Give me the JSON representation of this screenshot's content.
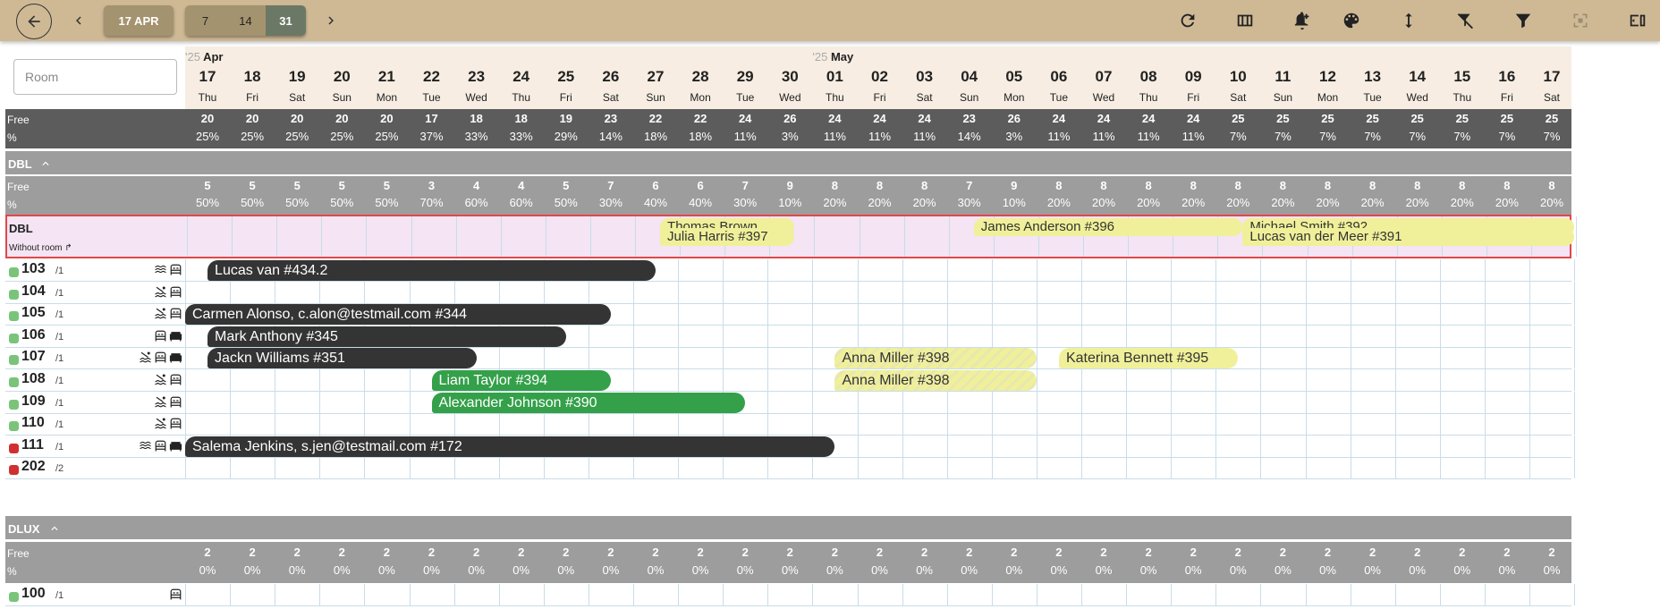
{
  "toolbar": {
    "date_label": "17 APR",
    "ranges": [
      {
        "label": "7",
        "active": false
      },
      {
        "label": "14",
        "active": false
      },
      {
        "label": "31",
        "active": true
      }
    ],
    "icons": [
      "refresh-icon",
      "columns-icon",
      "bell-plus-icon",
      "palette-icon",
      "vertical-arrows-icon",
      "filter-off-icon",
      "filter-icon",
      "fullscreen-icon",
      "sidebar-toggle-icon"
    ]
  },
  "search": {
    "placeholder": "Room"
  },
  "months": [
    {
      "year": "'25",
      "name": "Apr",
      "start_day_index": 0
    },
    {
      "year": "'25",
      "name": "May",
      "start_day_index": 14
    }
  ],
  "days": [
    {
      "n": "17",
      "w": "Thu"
    },
    {
      "n": "18",
      "w": "Fri"
    },
    {
      "n": "19",
      "w": "Sat"
    },
    {
      "n": "20",
      "w": "Sun"
    },
    {
      "n": "21",
      "w": "Mon"
    },
    {
      "n": "22",
      "w": "Tue"
    },
    {
      "n": "23",
      "w": "Wed"
    },
    {
      "n": "24",
      "w": "Thu"
    },
    {
      "n": "25",
      "w": "Fri"
    },
    {
      "n": "26",
      "w": "Sat"
    },
    {
      "n": "27",
      "w": "Sun"
    },
    {
      "n": "28",
      "w": "Mon"
    },
    {
      "n": "29",
      "w": "Tue"
    },
    {
      "n": "30",
      "w": "Wed"
    },
    {
      "n": "01",
      "w": "Thu"
    },
    {
      "n": "02",
      "w": "Fri"
    },
    {
      "n": "03",
      "w": "Sat"
    },
    {
      "n": "04",
      "w": "Sun"
    },
    {
      "n": "05",
      "w": "Mon"
    },
    {
      "n": "06",
      "w": "Tue"
    },
    {
      "n": "07",
      "w": "Wed"
    },
    {
      "n": "08",
      "w": "Thu"
    },
    {
      "n": "09",
      "w": "Fri"
    },
    {
      "n": "10",
      "w": "Sat"
    },
    {
      "n": "11",
      "w": "Sun"
    },
    {
      "n": "12",
      "w": "Mon"
    },
    {
      "n": "13",
      "w": "Tue"
    },
    {
      "n": "14",
      "w": "Wed"
    },
    {
      "n": "15",
      "w": "Thu"
    },
    {
      "n": "16",
      "w": "Fri"
    },
    {
      "n": "17",
      "w": "Sat"
    }
  ],
  "stat_labels": {
    "free": "Free",
    "pct": "%"
  },
  "total_stats": {
    "free": [
      "20",
      "20",
      "20",
      "20",
      "20",
      "17",
      "18",
      "18",
      "19",
      "23",
      "22",
      "22",
      "24",
      "26",
      "24",
      "24",
      "24",
      "23",
      "26",
      "24",
      "24",
      "24",
      "24",
      "25",
      "25",
      "25",
      "25",
      "25",
      "25",
      "25",
      "25"
    ],
    "pct": [
      "25%",
      "25%",
      "25%",
      "25%",
      "25%",
      "37%",
      "33%",
      "33%",
      "29%",
      "14%",
      "18%",
      "18%",
      "11%",
      "3%",
      "11%",
      "11%",
      "11%",
      "14%",
      "3%",
      "11%",
      "11%",
      "11%",
      "11%",
      "7%",
      "7%",
      "7%",
      "7%",
      "7%",
      "7%",
      "7%",
      "7%"
    ]
  },
  "sections": [
    {
      "name": "DBL",
      "free": [
        "5",
        "5",
        "5",
        "5",
        "5",
        "3",
        "4",
        "4",
        "5",
        "7",
        "6",
        "6",
        "7",
        "9",
        "8",
        "8",
        "8",
        "7",
        "9",
        "8",
        "8",
        "8",
        "8",
        "8",
        "8",
        "8",
        "8",
        "8",
        "8",
        "8",
        "8"
      ],
      "pct": [
        "50%",
        "50%",
        "50%",
        "50%",
        "50%",
        "70%",
        "60%",
        "60%",
        "50%",
        "30%",
        "40%",
        "40%",
        "30%",
        "10%",
        "20%",
        "20%",
        "20%",
        "30%",
        "10%",
        "20%",
        "20%",
        "20%",
        "20%",
        "20%",
        "20%",
        "20%",
        "20%",
        "20%",
        "20%",
        "20%",
        "20%"
      ]
    },
    {
      "name": "DLUX",
      "free": [
        "2",
        "2",
        "2",
        "2",
        "2",
        "2",
        "2",
        "2",
        "2",
        "2",
        "2",
        "2",
        "2",
        "2",
        "2",
        "2",
        "2",
        "2",
        "2",
        "2",
        "2",
        "2",
        "2",
        "2",
        "2",
        "2",
        "2",
        "2",
        "2",
        "2",
        "2"
      ],
      "pct": [
        "0%",
        "0%",
        "0%",
        "0%",
        "0%",
        "0%",
        "0%",
        "0%",
        "0%",
        "0%",
        "0%",
        "0%",
        "0%",
        "0%",
        "0%",
        "0%",
        "0%",
        "0%",
        "0%",
        "0%",
        "0%",
        "0%",
        "0%",
        "0%",
        "0%",
        "0%",
        "0%",
        "0%",
        "0%",
        "0%",
        "0%"
      ]
    }
  ],
  "unassigned": {
    "title": "DBL",
    "subtitle": "Without room ↱",
    "bookings": [
      {
        "label": "Thomas Brown",
        "start": 10.6,
        "days": 3.0,
        "lane": 0,
        "style": "yellow"
      },
      {
        "label": "Julia Harris #397",
        "start": 10.6,
        "days": 3.0,
        "lane": 1,
        "style": "yellow"
      },
      {
        "label": "James Anderson #396",
        "start": 17.6,
        "days": 6.0,
        "lane": 0,
        "style": "yellow"
      },
      {
        "label": "Michael Smith #392",
        "start": 23.6,
        "days": 7.4,
        "lane": 0,
        "style": "yellow"
      },
      {
        "label": "Lucas van der Meer #391",
        "start": 23.6,
        "days": 7.4,
        "lane": 1,
        "style": "yellow"
      }
    ]
  },
  "rooms": [
    {
      "num": "103",
      "cap": "/1",
      "status": "#7ac47a",
      "amenities": [
        "waves-icon",
        "bed-icon"
      ],
      "bookings": [
        {
          "label": "Lucas van #434.2",
          "start": 0.5,
          "days": 10.0,
          "style": "dark"
        }
      ]
    },
    {
      "num": "104",
      "cap": "/1",
      "status": "#7ac47a",
      "amenities": [
        "sea-icon",
        "bed-icon"
      ],
      "bookings": []
    },
    {
      "num": "105",
      "cap": "/1",
      "status": "#7ac47a",
      "amenities": [
        "sea-icon",
        "bed-icon"
      ],
      "bookings": [
        {
          "label": "Carmen Alonso, c.alon@testmail.com #344",
          "start": 0.0,
          "days": 9.5,
          "style": "dark"
        }
      ]
    },
    {
      "num": "106",
      "cap": "/1",
      "status": "#7ac47a",
      "amenities": [
        "bed-icon",
        "sofa-icon"
      ],
      "bookings": [
        {
          "label": "Mark Anthony #345",
          "start": 0.5,
          "days": 8.0,
          "style": "dark"
        }
      ]
    },
    {
      "num": "107",
      "cap": "/1",
      "status": "#7ac47a",
      "amenities": [
        "sea-icon",
        "bed-icon",
        "sofa-icon"
      ],
      "bookings": [
        {
          "label": "Jackn Williams #351",
          "start": 0.5,
          "days": 6.0,
          "style": "dark"
        },
        {
          "label": "Anna Miller #398",
          "start": 14.5,
          "days": 4.5,
          "style": "hatch"
        },
        {
          "label": "Katerina Bennett #395",
          "start": 19.5,
          "days": 4.0,
          "style": "yellow"
        }
      ]
    },
    {
      "num": "108",
      "cap": "/1",
      "status": "#7ac47a",
      "amenities": [
        "sea-icon",
        "bed-icon"
      ],
      "bookings": [
        {
          "label": "Liam Taylor #394",
          "start": 5.5,
          "days": 4.0,
          "style": "green"
        },
        {
          "label": "Anna Miller #398",
          "start": 14.5,
          "days": 4.5,
          "style": "hatch"
        }
      ]
    },
    {
      "num": "109",
      "cap": "/1",
      "status": "#7ac47a",
      "amenities": [
        "sea-icon",
        "bed-icon"
      ],
      "bookings": [
        {
          "label": "Alexander Johnson #390",
          "start": 5.5,
          "days": 7.0,
          "style": "green"
        }
      ]
    },
    {
      "num": "110",
      "cap": "/1",
      "status": "#7ac47a",
      "amenities": [
        "sea-icon",
        "bed-icon"
      ],
      "bookings": []
    },
    {
      "num": "111",
      "cap": "/1",
      "status": "#d03030",
      "amenities": [
        "waves-icon",
        "bed-icon",
        "sofa-icon"
      ],
      "bookings": [
        {
          "label": "Salema Jenkins, s.jen@testmail.com #172",
          "start": 0.0,
          "days": 14.5,
          "style": "dark"
        }
      ]
    },
    {
      "num": "202",
      "cap": "/2",
      "status": "#d03030",
      "amenities": [],
      "bookings": []
    }
  ],
  "dlux_rooms": [
    {
      "num": "100",
      "cap": "/1",
      "status": "#7ac47a",
      "amenities": [
        "bed-icon"
      ],
      "bookings": []
    }
  ]
}
